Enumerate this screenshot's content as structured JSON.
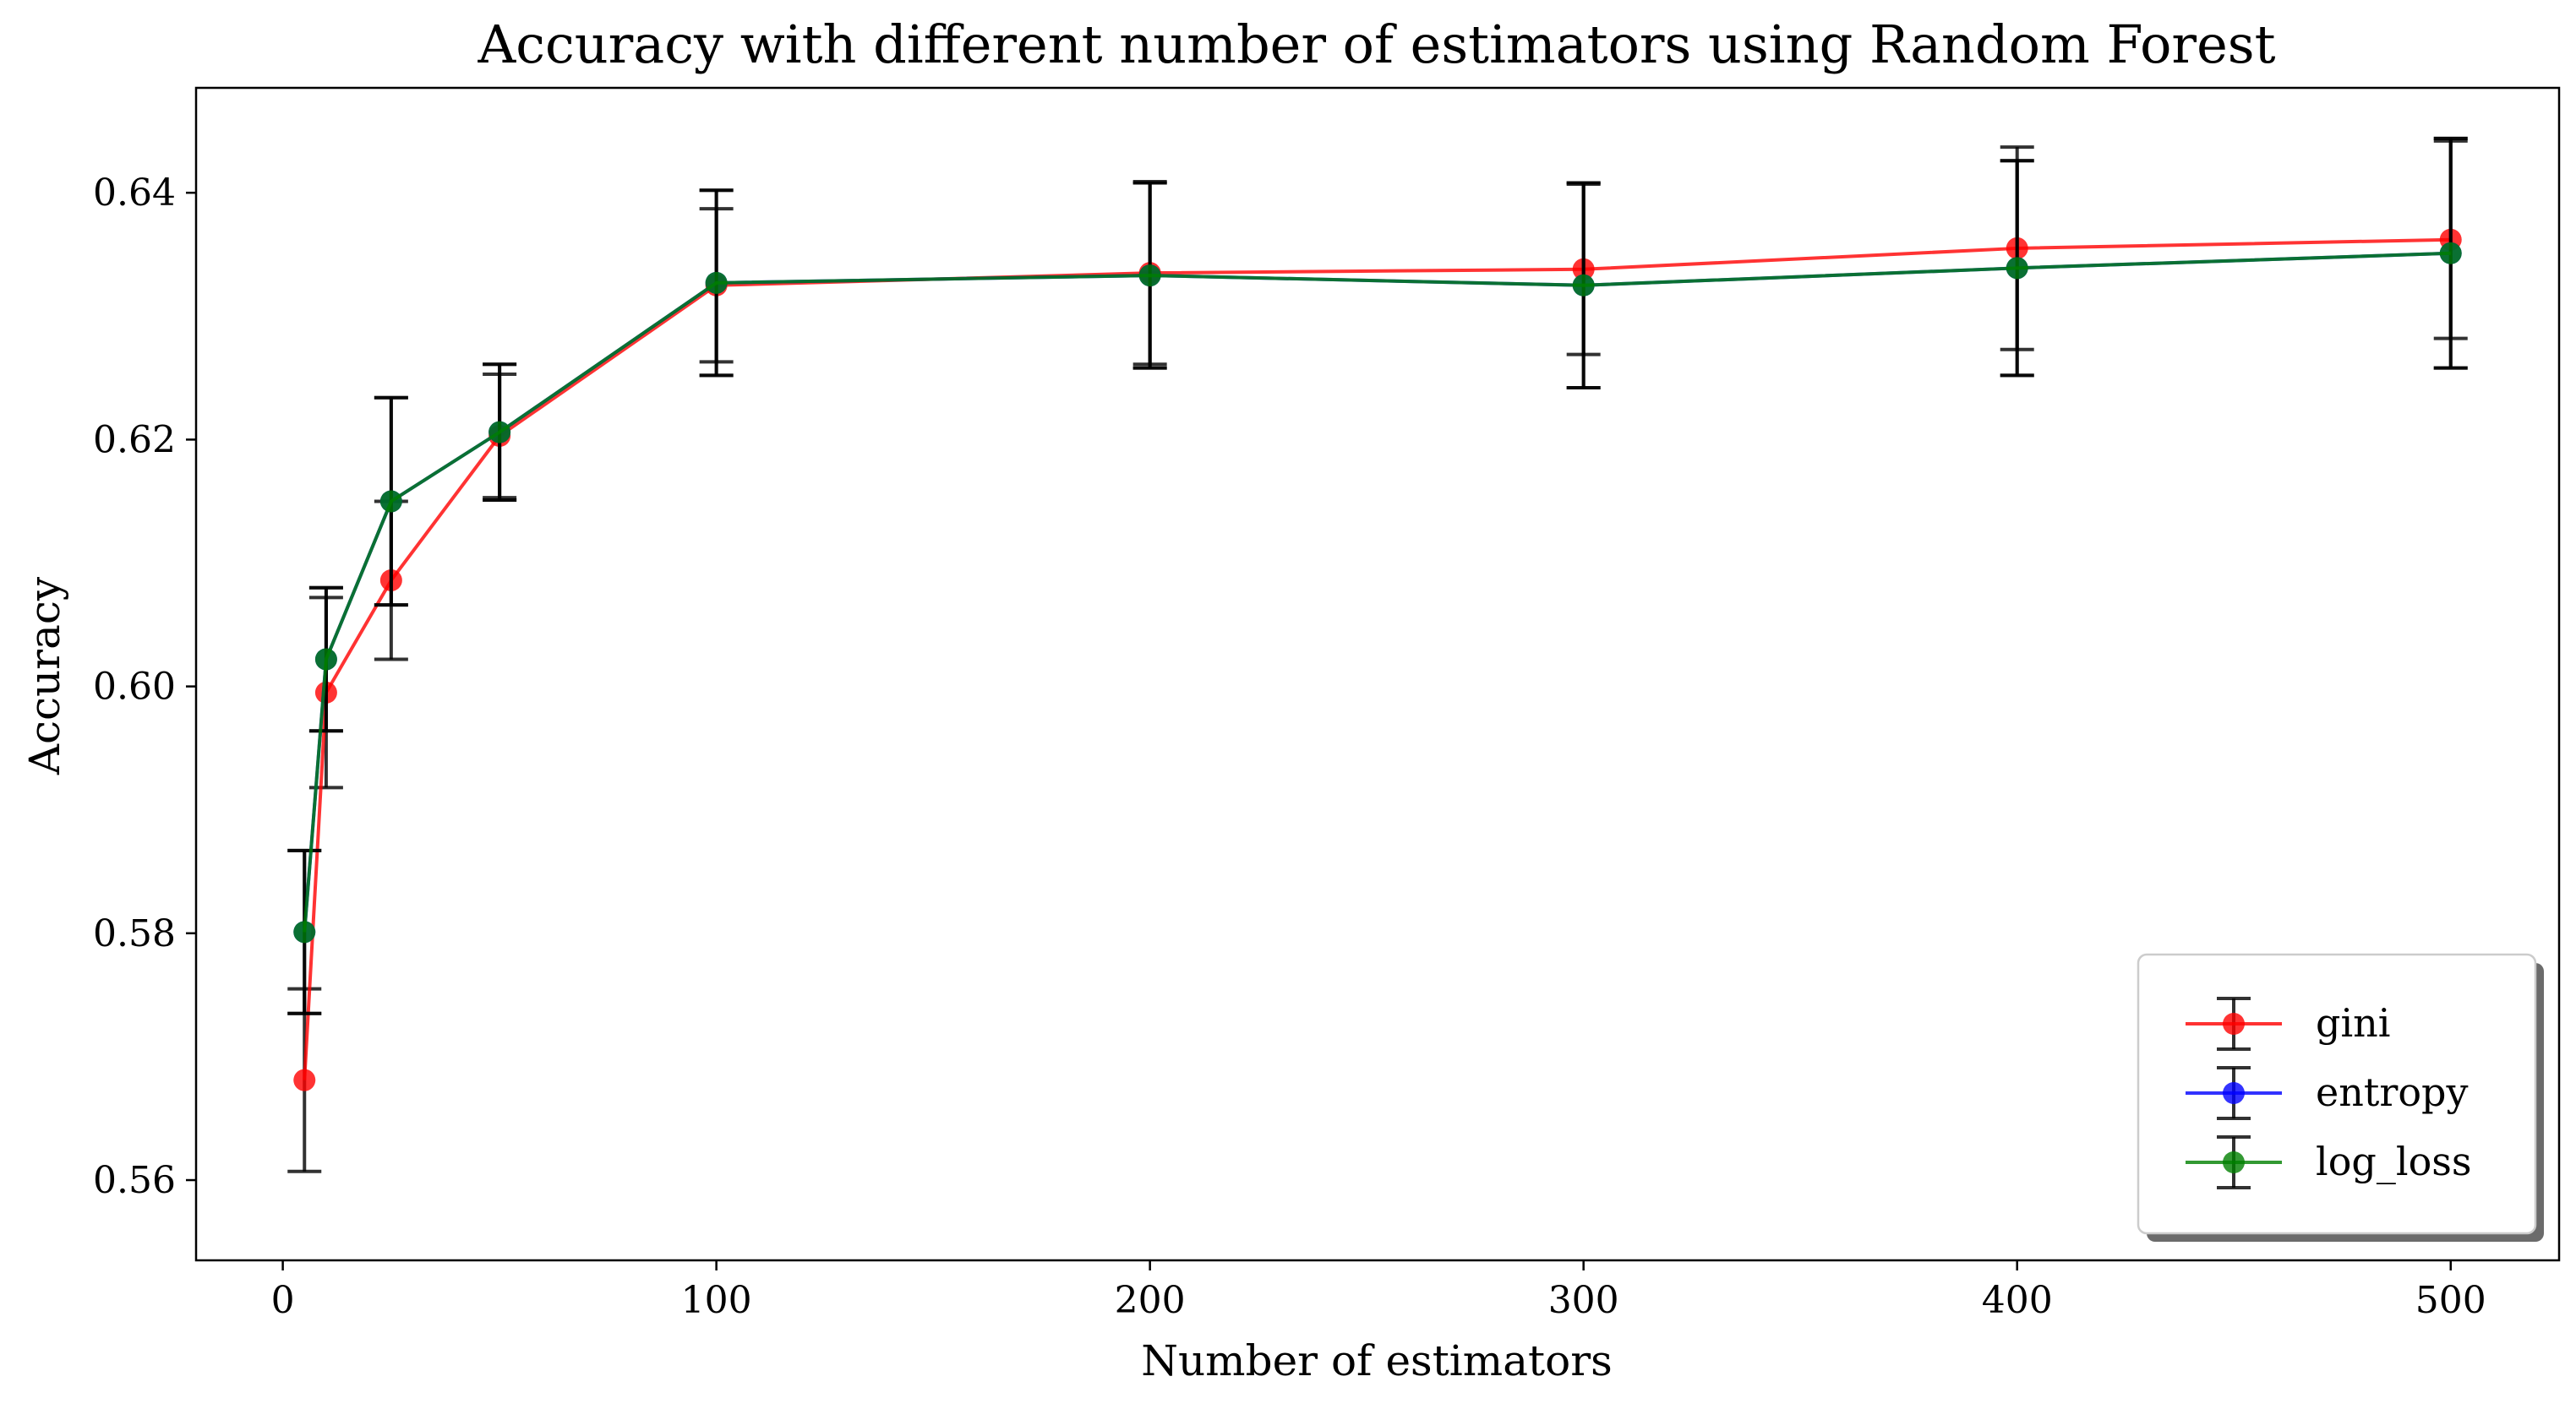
{
  "chart_data": {
    "type": "line",
    "title": "Accuracy with different number of estimators using Random Forest",
    "xlabel": "Number of estimators",
    "ylabel": "Accuracy",
    "xlim": [
      -20,
      525
    ],
    "ylim": [
      0.5535,
      0.6485
    ],
    "x_ticks": [
      0,
      100,
      200,
      300,
      400,
      500
    ],
    "x_tick_labels": [
      "0",
      "100",
      "200",
      "300",
      "400",
      "500"
    ],
    "y_ticks": [
      0.56,
      0.58,
      0.6,
      0.62,
      0.64
    ],
    "y_tick_labels": [
      "0.56",
      "0.58",
      "0.60",
      "0.62",
      "0.64"
    ],
    "grid": false,
    "legend_position": "lower-right",
    "x": [
      5,
      10,
      25,
      50,
      100,
      200,
      300,
      400,
      500
    ],
    "series": [
      {
        "name": "gini",
        "color": "#ff0000",
        "values": [
          0.5681,
          0.5995,
          0.6086,
          0.6203,
          0.6325,
          0.6335,
          0.6338,
          0.6355,
          0.6362
        ],
        "errors": [
          0.0074,
          0.0077,
          0.0064,
          0.005,
          0.0062,
          0.0074,
          0.0069,
          0.0082,
          0.008
        ]
      },
      {
        "name": "entropy",
        "color": "#0000ff",
        "values": [
          0.5801,
          0.6022,
          0.615,
          0.6206,
          0.6327,
          0.6333,
          0.6325,
          0.6339,
          0.6351
        ],
        "errors": [
          0.0066,
          0.0058,
          0.0084,
          0.0055,
          0.0075,
          0.0075,
          0.0083,
          0.0087,
          0.0093
        ]
      },
      {
        "name": "log_loss",
        "color": "#008000",
        "values": [
          0.5801,
          0.6022,
          0.615,
          0.6206,
          0.6327,
          0.6333,
          0.6325,
          0.6339,
          0.6351
        ],
        "errors": [
          0.0066,
          0.0058,
          0.0084,
          0.0055,
          0.0075,
          0.0075,
          0.0083,
          0.0087,
          0.0093
        ]
      }
    ]
  }
}
